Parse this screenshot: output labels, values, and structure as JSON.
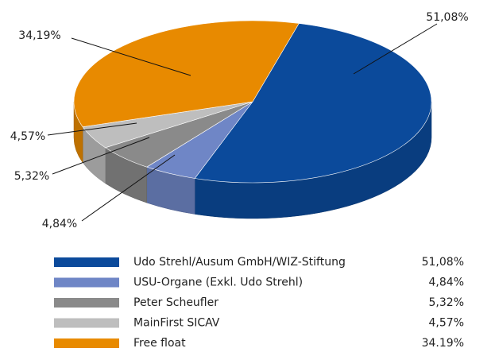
{
  "chart_data": {
    "type": "pie",
    "categories": [
      "Udo Strehl/Ausum GmbH/WIZ-Stiftung",
      "USU-Organe (Exkl. Udo Strehl)",
      "Peter Scheufler",
      "MainFirst SICAV",
      "Free float"
    ],
    "values": [
      51.08,
      4.84,
      5.32,
      4.57,
      34.19
    ],
    "value_labels": [
      "51,08%",
      "4,84%",
      "5,32%",
      "4,57%",
      "34,19%"
    ],
    "legend_value_labels": [
      "51,08%",
      "4,84%",
      "5,32%",
      "4,57%",
      "34.19%"
    ],
    "colors": [
      "#0b4a9b",
      "#6f86c6",
      "#8a8a8a",
      "#bebebe",
      "#e88a00"
    ],
    "legend": "bottom"
  }
}
